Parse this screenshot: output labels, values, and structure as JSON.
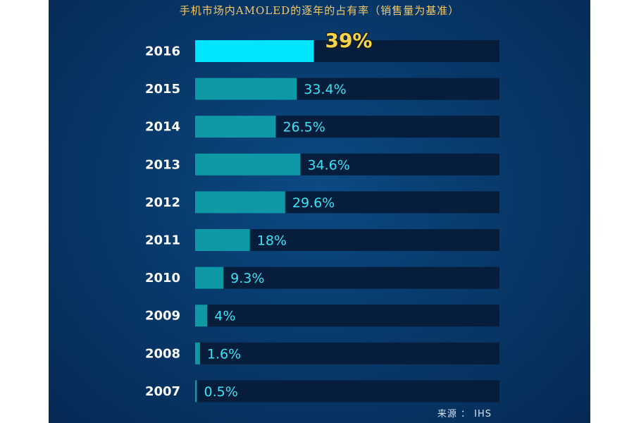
{
  "chart_data": {
    "type": "bar",
    "orientation": "horizontal",
    "title": "手机市场内AMOLED的逐年的占有率（销售量为基准）",
    "categories": [
      "2016",
      "2015",
      "2014",
      "2013",
      "2012",
      "2011",
      "2010",
      "2009",
      "2008",
      "2007"
    ],
    "values": [
      39,
      33.4,
      26.5,
      34.6,
      29.6,
      18,
      9.3,
      4,
      1.6,
      0.5
    ],
    "labels": [
      "39%",
      "33.4%",
      "26.5%",
      "34.6%",
      "29.6%",
      "18%",
      "9.3%",
      "4%",
      "1.6%",
      "0.5%"
    ],
    "unit": "%",
    "xlim": [
      0,
      100
    ],
    "highlight_index": 0,
    "grid": false,
    "legend": "none",
    "colors": {
      "bar": "#0f98a6",
      "bar_highlight": "#00e5ff",
      "track": "#061d3b",
      "label": "#39e3f5",
      "label_highlight": "#f7d54a"
    },
    "source": "来源 ： IHS"
  }
}
